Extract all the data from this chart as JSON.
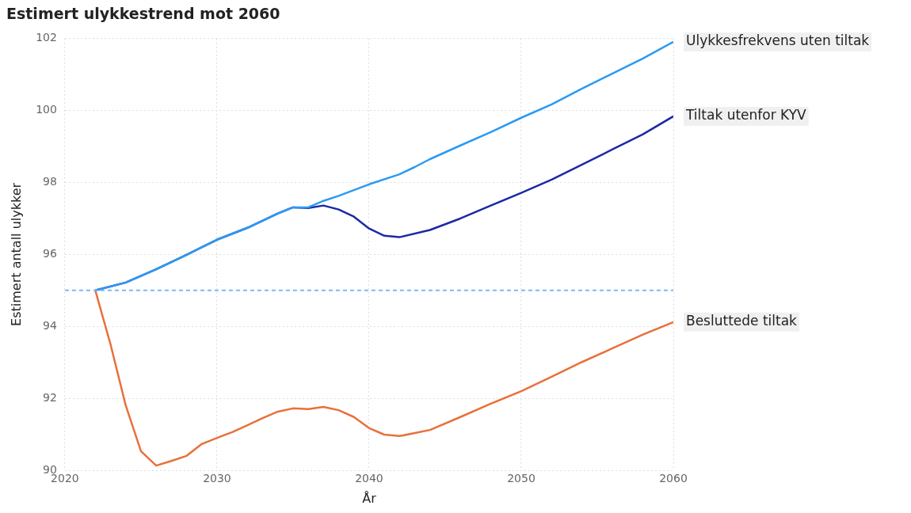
{
  "chart_data": {
    "type": "line",
    "title": "Estimert ulykkestrend mot 2060",
    "xlabel": "År",
    "ylabel": "Estimert antall ulykker",
    "xlim": [
      2020,
      2060
    ],
    "xticks": [
      2020,
      2030,
      2040,
      2050,
      2060
    ],
    "ylim": [
      90,
      102
    ],
    "yticks": [
      90,
      92,
      94,
      96,
      98,
      100,
      102
    ],
    "grid": true,
    "legend": false,
    "marker": "none",
    "line_style": "solid",
    "ref_lines": [
      {
        "axis": "y",
        "value": 95,
        "color": "#7ab8f5",
        "line_style": "dashed"
      }
    ],
    "series": [
      {
        "name": "Ulykkesfrekvens uten tiltak",
        "color": "#2b9af3",
        "x": [
          2022,
          2024,
          2026,
          2028,
          2030,
          2032,
          2034,
          2035,
          2036,
          2037,
          2038,
          2039,
          2040,
          2042,
          2043,
          2044,
          2046,
          2048,
          2050,
          2052,
          2054,
          2056,
          2058,
          2060
        ],
        "values": [
          95.0,
          95.22,
          95.59,
          95.99,
          96.41,
          96.74,
          97.14,
          97.31,
          97.31,
          97.49,
          97.63,
          97.79,
          97.95,
          98.23,
          98.43,
          98.65,
          99.03,
          99.4,
          99.8,
          100.17,
          100.61,
          101.03,
          101.45,
          101.91
        ]
      },
      {
        "name": "Tiltak utenfor KYV",
        "color": "#1b2aa3",
        "x": [
          2022,
          2024,
          2026,
          2028,
          2030,
          2032,
          2034,
          2035,
          2036,
          2037,
          2038,
          2039,
          2040,
          2041,
          2042,
          2044,
          2046,
          2048,
          2050,
          2052,
          2054,
          2056,
          2058,
          2060
        ],
        "values": [
          95.0,
          95.22,
          95.59,
          95.99,
          96.41,
          96.74,
          97.14,
          97.31,
          97.29,
          97.36,
          97.25,
          97.05,
          96.72,
          96.52,
          96.48,
          96.68,
          97.0,
          97.36,
          97.71,
          98.08,
          98.5,
          98.92,
          99.34,
          99.84
        ]
      },
      {
        "name": "Besluttede tiltak",
        "color": "#e8703a",
        "x": [
          2022,
          2023,
          2024,
          2025,
          2026,
          2027,
          2028,
          2029,
          2030,
          2031,
          2032,
          2033,
          2034,
          2035,
          2036,
          2037,
          2038,
          2039,
          2040,
          2041,
          2042,
          2044,
          2046,
          2048,
          2050,
          2052,
          2054,
          2056,
          2058,
          2060
        ],
        "values": [
          95.0,
          93.5,
          91.8,
          90.53,
          90.13,
          90.26,
          90.4,
          90.73,
          90.9,
          91.06,
          91.25,
          91.45,
          91.63,
          91.72,
          91.7,
          91.76,
          91.67,
          91.48,
          91.17,
          90.99,
          90.95,
          91.12,
          91.48,
          91.85,
          92.2,
          92.6,
          93.01,
          93.39,
          93.77,
          94.12
        ]
      }
    ]
  }
}
